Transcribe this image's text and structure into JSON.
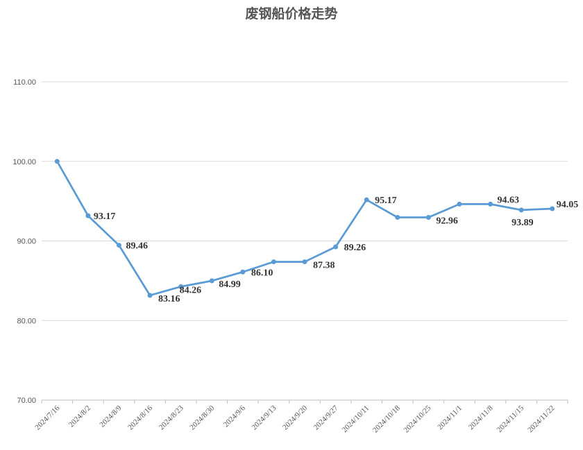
{
  "chart_data": {
    "type": "line",
    "title": "废钢船价格走势",
    "categories": [
      "2024/7/16",
      "2024/8/2",
      "2024/8/9",
      "2024/8/16",
      "2024/8/23",
      "2024/8/30",
      "2024/9/6",
      "2024/9/13",
      "2024/9/20",
      "2024/9/27",
      "2024/10/11",
      "2024/10/18",
      "2024/10/25",
      "2024/11/1",
      "2024/11/8",
      "2024/11/15",
      "2024/11/22"
    ],
    "series": [
      {
        "values": [
          100.0,
          93.17,
          89.46,
          83.16,
          84.26,
          84.99,
          86.1,
          87.38,
          87.38,
          89.26,
          95.17,
          92.96,
          92.96,
          94.63,
          94.63,
          93.89,
          94.05
        ],
        "labels": [
          "",
          "93.17",
          "89.46",
          "83.16",
          "84.26",
          "84.99",
          "86.10",
          "",
          "87.38",
          "89.26",
          "95.17",
          "",
          "92.96",
          "",
          "94.63",
          "93.89",
          "94.05"
        ],
        "color": "#5b9bd5"
      }
    ],
    "ylim": [
      70,
      110
    ],
    "yticks": [
      "70.00",
      "80.00",
      "90.00",
      "100.00",
      "110.00"
    ],
    "grid": true
  }
}
